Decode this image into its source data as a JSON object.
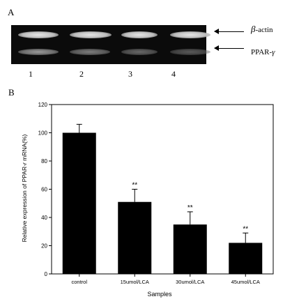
{
  "panel_a": {
    "label": "A",
    "lanes": [
      "1",
      "2",
      "3",
      "4"
    ],
    "bands": [
      {
        "name": "β-actin",
        "symbol": "β",
        "text": "-actin",
        "intensity": [
          1.0,
          1.0,
          0.95,
          1.0
        ]
      },
      {
        "name": "PPAR-γ",
        "text": "PPAR-",
        "symbol": "γ",
        "intensity": [
          0.85,
          0.7,
          0.55,
          0.45
        ]
      }
    ]
  },
  "panel_b": {
    "label": "B"
  },
  "chart_data": {
    "type": "bar",
    "categories": [
      "control",
      "15umol/LCA",
      "30umol/LCA",
      "45umol/LCA"
    ],
    "values": [
      100,
      51,
      35,
      22
    ],
    "errors": [
      6,
      9,
      9,
      7
    ],
    "significance": [
      "",
      "**",
      "**",
      "**"
    ],
    "title": "",
    "xlabel": "Samples",
    "ylabel_parts": [
      "Relative expression of PPAR-",
      "r",
      " mRNA(%)"
    ],
    "ylim": [
      0,
      120
    ],
    "yticks": [
      0,
      20,
      40,
      60,
      80,
      100,
      120
    ],
    "bar_color": "#000000",
    "grid": false,
    "legend": false
  }
}
